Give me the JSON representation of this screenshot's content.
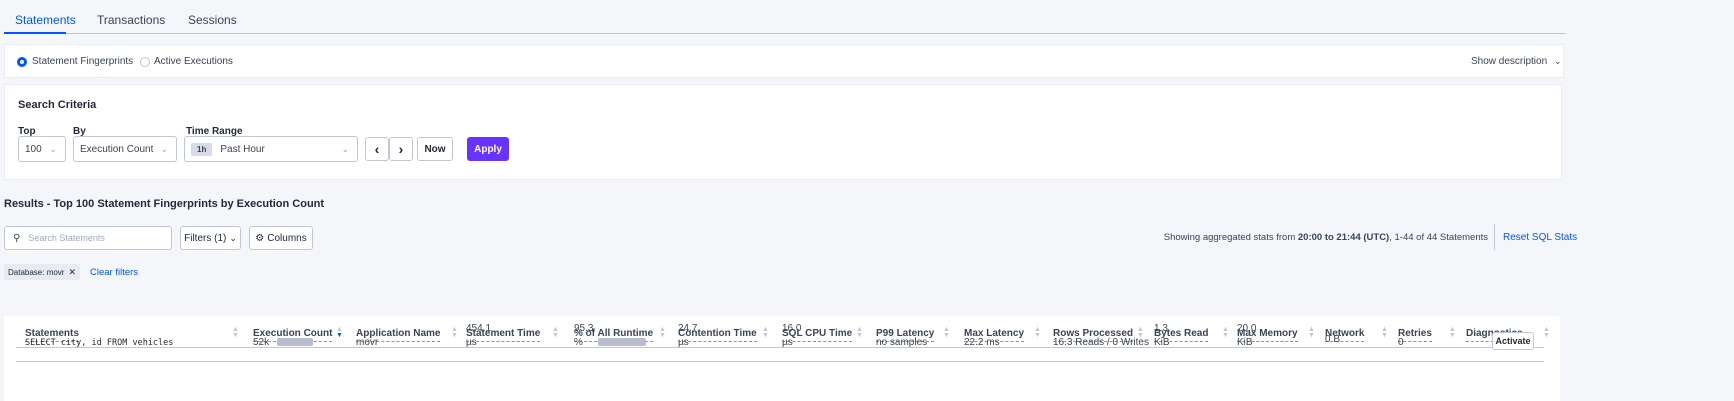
{
  "tabs": [
    "Statements",
    "Transactions",
    "Sessions"
  ],
  "view_toggle": {
    "options": [
      "Statement Fingerprints",
      "Active Executions"
    ],
    "selected": "Statement Fingerprints",
    "show_description": "Show description"
  },
  "search_criteria": {
    "title": "Search Criteria",
    "top_label": "Top",
    "top_value": "100",
    "by_label": "By",
    "by_value": "Execution Count",
    "time_range_label": "Time Range",
    "time_range_badge": "1h",
    "time_range_value": "Past Hour",
    "now": "Now",
    "apply": "Apply"
  },
  "results": {
    "title": "Results - Top 100 Statement Fingerprints by Execution Count",
    "search_placeholder": "Search Statements",
    "filters": "Filters (1)",
    "columns": "Columns",
    "stats_prefix": "Showing aggregated stats from ",
    "stats_range": "20:00 to 21:44 (UTC)",
    "stats_suffix": ", 1-44 of 44 Statements",
    "reset": "Reset SQL Stats",
    "chip": "Database: movr",
    "clear_filters": "Clear filters"
  },
  "table": {
    "headers": [
      "Statements",
      "Execution Count",
      "Application Name",
      "Statement Time",
      "% of All Runtime",
      "Contention Time",
      "SQL CPU Time",
      "P99 Latency",
      "Max Latency",
      "Rows Processed",
      "Bytes Read",
      "Max Memory",
      "Network",
      "Retries",
      "Diagnostics"
    ],
    "sorted_column": "Execution Count",
    "rows": [
      {
        "statement": "SELECT city, id FROM vehicles",
        "execution_count": "52k",
        "execution_count_fraction": 1.0,
        "application": "movr",
        "statement_time": "454.1",
        "statement_time_unit": "µs",
        "pct_runtime": "95.3",
        "pct_unit": "%",
        "pct_fraction": 0.953,
        "contention_time": "24.7",
        "contention_unit": "µs",
        "sql_cpu": "16.0",
        "sql_cpu_unit": "µs",
        "p99": "no samples",
        "max_latency": "22.2 ms",
        "rows_processed": "16.3 Reads / 0 Writes",
        "bytes_read": "1.3",
        "bytes_read_unit": "KiB",
        "max_memory": "20.0",
        "max_memory_unit": "KiB",
        "network": "0 B",
        "retries": "0",
        "diagnostics": "Activate"
      }
    ]
  },
  "colors": {
    "accent": "#0055ff",
    "apply": "#6933ff",
    "bar": "#b8bed0"
  }
}
